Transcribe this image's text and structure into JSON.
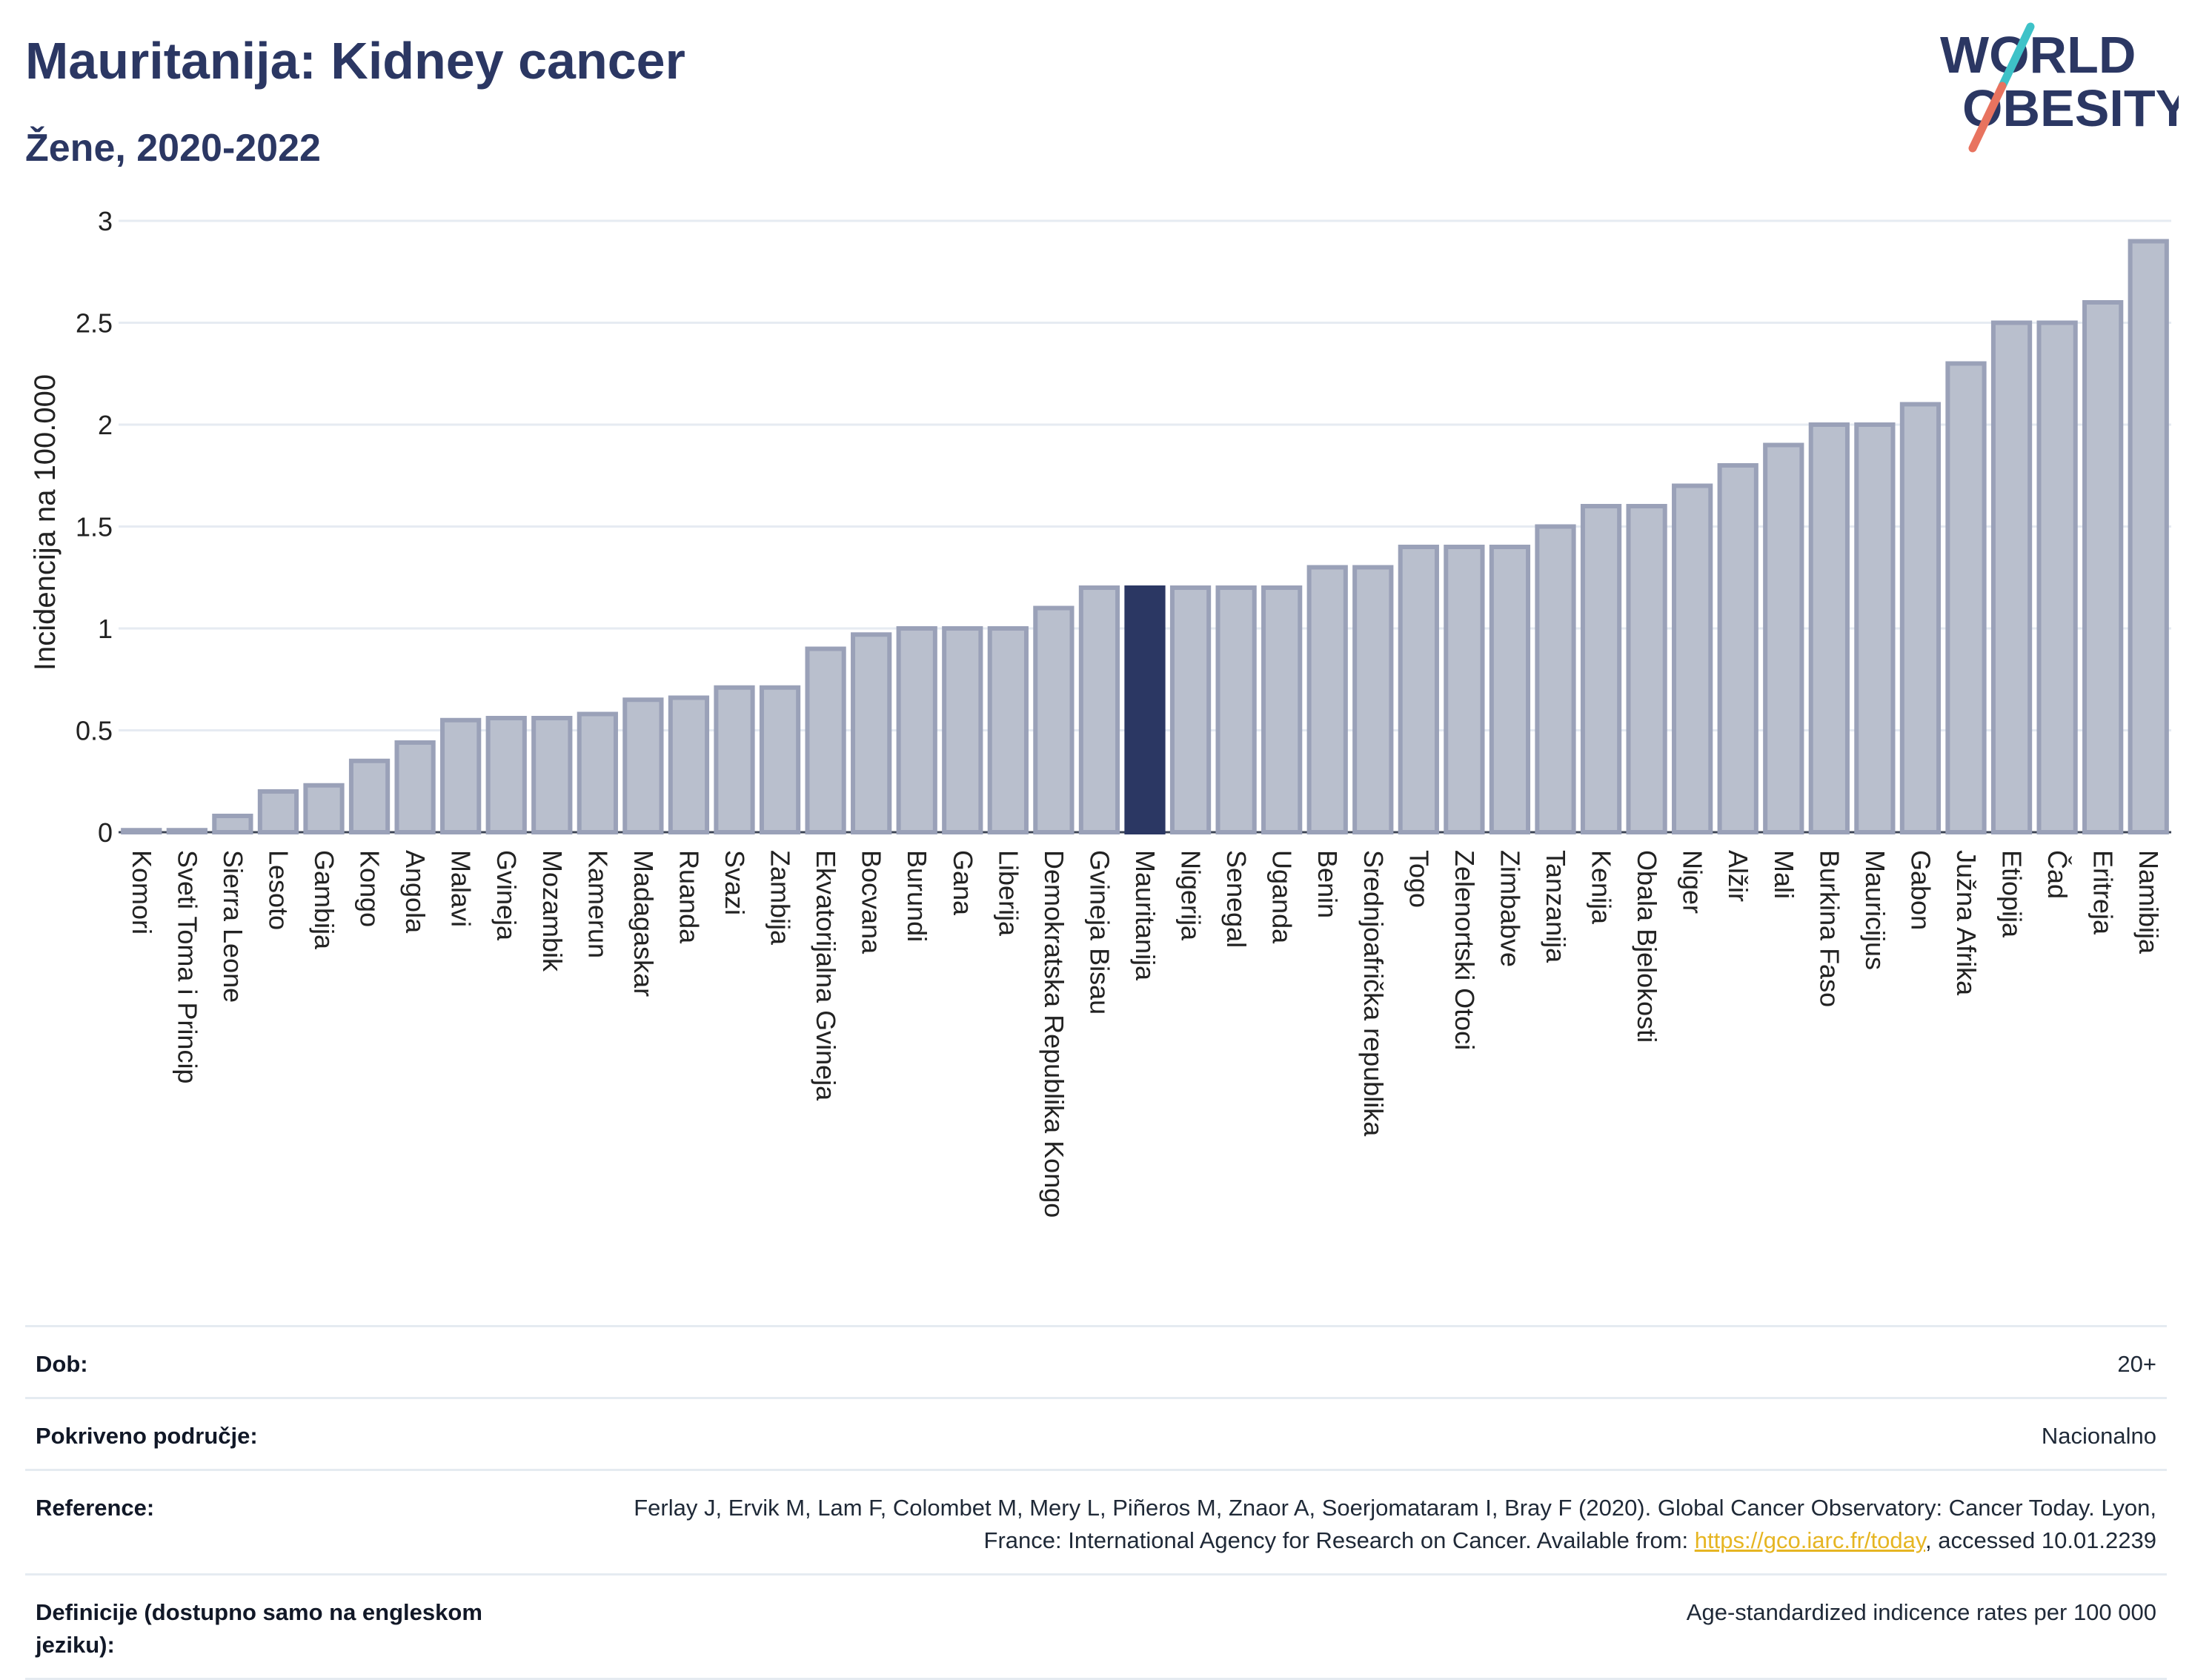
{
  "header": {
    "title": "Mauritanija: Kidney cancer",
    "subtitle": "Žene, 2020-2022"
  },
  "logo": {
    "line1": "WORLD",
    "line2": "OBESITY",
    "accent_colors": [
      "#3ec2c8",
      "#e8735f"
    ],
    "text_color": "#2b3763"
  },
  "chart_data": {
    "type": "bar",
    "title": "Mauritanija: Kidney cancer",
    "subtitle": "Žene, 2020-2022",
    "ylabel": "Incidencija na 100.000",
    "xlabel": "",
    "ylim": [
      0,
      3
    ],
    "yticks": [
      0,
      0.5,
      1,
      1.5,
      2,
      2.5,
      3
    ],
    "ytick_labels": [
      "0",
      "0.5",
      "1",
      "1.5",
      "2",
      "2.5",
      "3"
    ],
    "grid": true,
    "highlight": "Mauritanija",
    "colors": {
      "bar": "#b9bfcd",
      "bar_border": "#9aa1b8",
      "highlight": "#2b3763"
    },
    "categories": [
      "Komori",
      "Sveti Toma i Princip",
      "Sierra Leone",
      "Lesoto",
      "Gambija",
      "Kongo",
      "Angola",
      "Malavi",
      "Gvineja",
      "Mozambik",
      "Kamerun",
      "Madagaskar",
      "Ruanda",
      "Svazi",
      "Zambija",
      "Ekvatorijalna Gvineja",
      "Bocvana",
      "Burundi",
      "Gana",
      "Liberija",
      "Demokratska Republika Kongo",
      "Gvineja Bisau",
      "Mauritanija",
      "Nigerija",
      "Senegal",
      "Uganda",
      "Benin",
      "Srednjoafrička republika",
      "Togo",
      "Zelenortski Otoci",
      "Zimbabve",
      "Tanzanija",
      "Kenija",
      "Obala Bjelokosti",
      "Niger",
      "Alžir",
      "Mali",
      "Burkina Faso",
      "Mauricijus",
      "Gabon",
      "Južna Afrika",
      "Etiopija",
      "Čad",
      "Eritreja",
      "Namibija"
    ],
    "values": [
      0.01,
      0.01,
      0.08,
      0.2,
      0.23,
      0.35,
      0.44,
      0.55,
      0.56,
      0.56,
      0.58,
      0.65,
      0.66,
      0.71,
      0.71,
      0.9,
      0.97,
      1.0,
      1.0,
      1.0,
      1.1,
      1.2,
      1.2,
      1.2,
      1.2,
      1.2,
      1.3,
      1.3,
      1.4,
      1.4,
      1.4,
      1.5,
      1.6,
      1.6,
      1.7,
      1.8,
      1.9,
      2.0,
      2.0,
      2.1,
      2.3,
      2.5,
      2.5,
      2.6,
      2.9
    ]
  },
  "meta": [
    {
      "label": "Dob:",
      "value": "20+"
    },
    {
      "label": "Pokriveno područje:",
      "value": "Nacionalno"
    },
    {
      "label": "Reference:",
      "value_before": "Ferlay J, Ervik M, Lam F, Colombet M, Mery L, Piñeros M, Znaor A, Soerjomataram I, Bray F (2020). Global Cancer Observatory: Cancer Today. Lyon, France: International Agency for Research on Cancer. Available from: ",
      "link": "https://gco.iarc.fr/today",
      "value_after": ", accessed 10.01.2239"
    },
    {
      "label": "Definicije (dostupno samo na engleskom jeziku):",
      "value": "Age-standardized indicence rates per 100 000"
    }
  ]
}
